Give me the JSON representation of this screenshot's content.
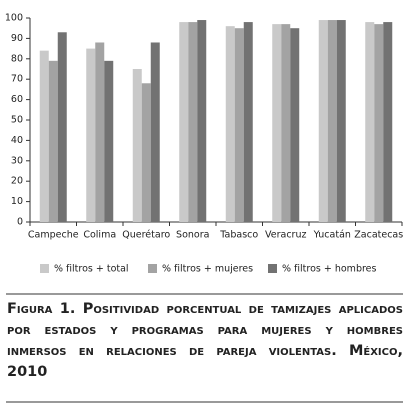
{
  "chart_data": {
    "type": "bar",
    "title": "Figura 1. Positividad porcentual de tamizajes aplicados por estados y programas para mujeres y hombres inmersos en relaciones de pareja violentas. México, 2010",
    "categories": [
      "Campeche",
      "Colima",
      "Querétaro",
      "Sonora",
      "Tabasco",
      "Veracruz",
      "Yucatán",
      "Zacatecas"
    ],
    "series": [
      {
        "name": "% filtros + total",
        "color": "#c9c9c9",
        "values": [
          84,
          85,
          75,
          98,
          96,
          97,
          99,
          98
        ]
      },
      {
        "name": "% filtros + mujeres",
        "color": "#a3a3a3",
        "values": [
          79,
          88,
          68,
          98,
          95,
          97,
          99,
          97
        ]
      },
      {
        "name": "% filtros + hombres",
        "color": "#727272",
        "values": [
          93,
          79,
          88,
          99,
          98,
          95,
          99,
          98
        ]
      }
    ],
    "ylim": [
      0,
      100
    ],
    "yticks": [
      0,
      10,
      20,
      30,
      40,
      50,
      60,
      70,
      80,
      90,
      100
    ],
    "grid": false,
    "legend": "bottom"
  }
}
